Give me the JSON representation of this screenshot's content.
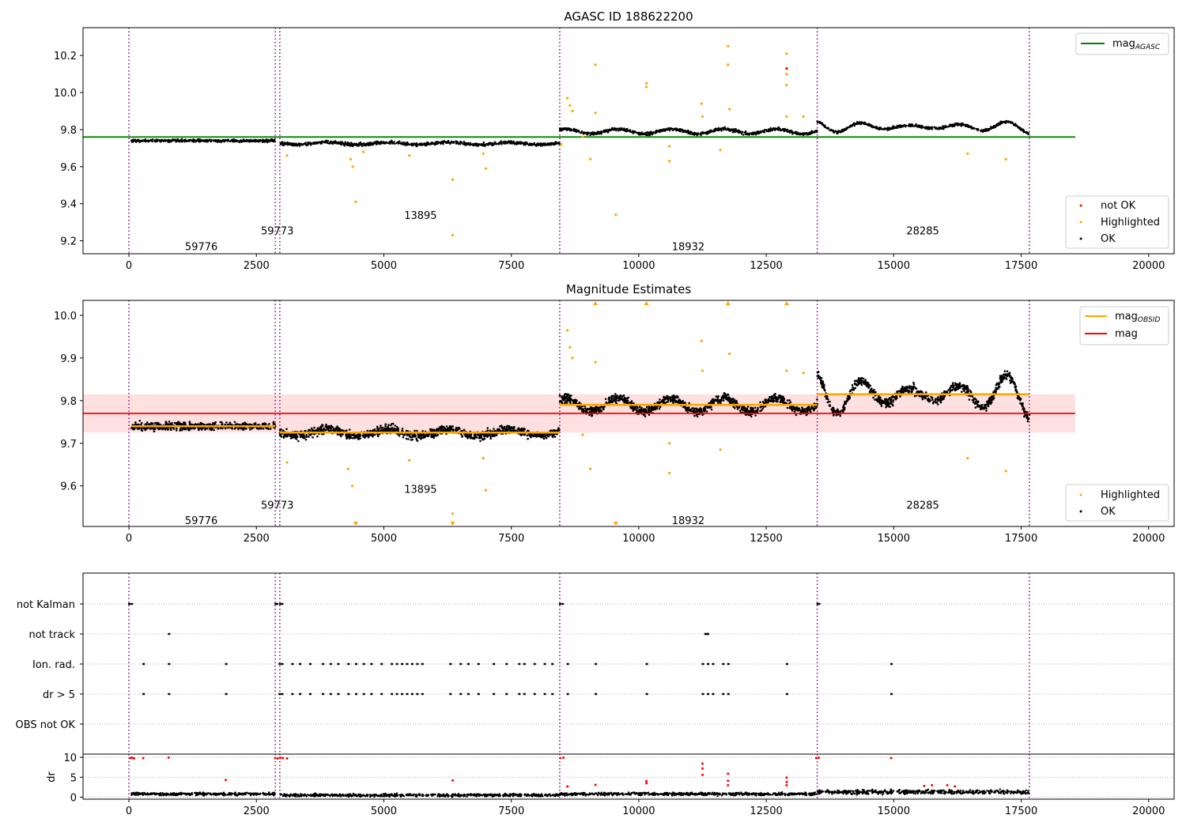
{
  "figure": {
    "obsids": [
      "59776",
      "59773",
      "13895",
      "18932",
      "28285"
    ],
    "obs_boundaries": [
      0,
      2870,
      2960,
      8450,
      13500,
      17660
    ],
    "x_ticks": [
      0,
      2500,
      5000,
      7500,
      10000,
      12500,
      15000,
      17500,
      20000
    ],
    "x_tick_labels": [
      "0",
      "2500",
      "5000",
      "7500",
      "10000",
      "12500",
      "15000",
      "17500",
      "20000"
    ],
    "xlim": [
      -900,
      20500
    ]
  },
  "chart_data": [
    {
      "type": "scatter",
      "title": "AGASC ID 188622200",
      "xlim": [
        -900,
        20500
      ],
      "ylim": [
        9.13,
        10.35
      ],
      "y_ticks": [
        9.2,
        9.4,
        9.6,
        9.8,
        10.0,
        10.2
      ],
      "y_tick_labels": [
        "9.2",
        "9.4",
        "9.6",
        "9.8",
        "10.0",
        "10.2"
      ],
      "legend_top": {
        "position": "top-right",
        "label_main": "mag",
        "label_sub": "AGASC",
        "color": "#008000"
      },
      "legend_bottom": {
        "position": "bottom-right",
        "entries": [
          {
            "label": "not OK",
            "color": "#ff0000"
          },
          {
            "label": "Highlighted",
            "color": "#ffa500"
          },
          {
            "label": "OK",
            "color": "#000000"
          }
        ]
      },
      "reference_line": {
        "value": 9.76,
        "x": [
          -900,
          18560
        ],
        "color": "#008000"
      },
      "obsid_labels": [
        {
          "text": "59776",
          "x": 1420,
          "y": 9.17
        },
        {
          "text": "59773",
          "x": 2910,
          "y": 9.255
        },
        {
          "text": "13895",
          "x": 5720,
          "y": 9.34
        },
        {
          "text": "18932",
          "x": 10970,
          "y": 9.17
        },
        {
          "text": "28285",
          "x": 15570,
          "y": 9.255
        }
      ],
      "segments": [
        {
          "x": [
            50,
            2870
          ],
          "mean": 9.74
        },
        {
          "x": [
            2960,
            8450
          ],
          "mean": 9.725
        },
        {
          "x": [
            8450,
            13500
          ],
          "mean": 9.79
        },
        {
          "x": [
            13500,
            17660
          ],
          "mean": 9.815
        }
      ],
      "highlighted_points": [
        {
          "x": 4350,
          "y": 9.64
        },
        {
          "x": 4390,
          "y": 9.6
        },
        {
          "x": 4450,
          "y": 9.41
        },
        {
          "x": 5500,
          "y": 9.66
        },
        {
          "x": 6350,
          "y": 9.53
        },
        {
          "x": 6350,
          "y": 9.23
        },
        {
          "x": 6950,
          "y": 9.67
        },
        {
          "x": 7000,
          "y": 9.59
        },
        {
          "x": 3100,
          "y": 9.66
        },
        {
          "x": 8600,
          "y": 9.97
        },
        {
          "x": 8650,
          "y": 9.93
        },
        {
          "x": 8700,
          "y": 9.9
        },
        {
          "x": 8900,
          "y": 9.76
        },
        {
          "x": 9050,
          "y": 9.64
        },
        {
          "x": 9150,
          "y": 10.15
        },
        {
          "x": 9150,
          "y": 9.89
        },
        {
          "x": 9550,
          "y": 9.34
        },
        {
          "x": 10150,
          "y": 10.05
        },
        {
          "x": 10150,
          "y": 10.03
        },
        {
          "x": 10600,
          "y": 9.71
        },
        {
          "x": 10600,
          "y": 9.63
        },
        {
          "x": 11230,
          "y": 9.94
        },
        {
          "x": 11250,
          "y": 9.87
        },
        {
          "x": 11600,
          "y": 9.69
        },
        {
          "x": 11750,
          "y": 10.25
        },
        {
          "x": 11750,
          "y": 10.15
        },
        {
          "x": 11780,
          "y": 9.91
        },
        {
          "x": 12900,
          "y": 10.21
        },
        {
          "x": 12900,
          "y": 10.1
        },
        {
          "x": 12900,
          "y": 10.04
        },
        {
          "x": 12900,
          "y": 9.87
        },
        {
          "x": 13230,
          "y": 9.87
        },
        {
          "x": 16450,
          "y": 9.67
        },
        {
          "x": 17200,
          "y": 9.64
        },
        {
          "x": 8480,
          "y": 9.72
        },
        {
          "x": 4600,
          "y": 9.68
        }
      ],
      "not_ok_points": [
        {
          "x": 12900,
          "y": 10.13
        }
      ]
    },
    {
      "type": "scatter",
      "title": "Magnitude Estimates",
      "xlim": [
        -900,
        20500
      ],
      "ylim": [
        9.505,
        10.035
      ],
      "y_ticks": [
        9.6,
        9.7,
        9.8,
        9.9,
        10.0
      ],
      "y_tick_labels": [
        "9.6",
        "9.7",
        "9.8",
        "9.9",
        "10.0"
      ],
      "legend_top": {
        "position": "top-right",
        "entries": [
          {
            "label_main": "mag",
            "label_sub": "OBSID",
            "color": "#ffa500"
          },
          {
            "label_main": "mag",
            "label_sub": "",
            "color": "#ff0000"
          }
        ]
      },
      "legend_bottom": {
        "position": "bottom-right",
        "entries": [
          {
            "label": "Highlighted",
            "color": "#ffa500"
          },
          {
            "label": "OK",
            "color": "#000000"
          }
        ]
      },
      "mag_line": {
        "value": 9.77,
        "x": [
          -900,
          18560
        ],
        "band": [
          9.725,
          9.815
        ],
        "color": "#ff0000"
      },
      "obsid_mag_lines": [
        {
          "x": [
            50,
            2870
          ],
          "value": 9.74
        },
        {
          "x": [
            2960,
            8450
          ],
          "value": 9.725
        },
        {
          "x": [
            8450,
            13500
          ],
          "value": 9.79
        },
        {
          "x": [
            13500,
            17660
          ],
          "value": 9.815
        }
      ],
      "obsid_labels": [
        {
          "text": "59776",
          "x": 1420,
          "y": 9.52
        },
        {
          "text": "59773",
          "x": 2910,
          "y": 9.556
        },
        {
          "text": "13895",
          "x": 5720,
          "y": 9.593
        },
        {
          "text": "18932",
          "x": 10970,
          "y": 9.52
        },
        {
          "text": "28285",
          "x": 15570,
          "y": 9.556
        }
      ],
      "highlighted_points": [
        {
          "x": 3100,
          "y": 9.655
        },
        {
          "x": 4300,
          "y": 9.64
        },
        {
          "x": 4380,
          "y": 9.6
        },
        {
          "x": 5500,
          "y": 9.66
        },
        {
          "x": 6350,
          "y": 9.535
        },
        {
          "x": 6950,
          "y": 9.665
        },
        {
          "x": 7000,
          "y": 9.59
        },
        {
          "x": 8600,
          "y": 9.965
        },
        {
          "x": 8650,
          "y": 9.925
        },
        {
          "x": 8700,
          "y": 9.9
        },
        {
          "x": 9050,
          "y": 9.64
        },
        {
          "x": 9150,
          "y": 9.89
        },
        {
          "x": 10600,
          "y": 9.63
        },
        {
          "x": 10600,
          "y": 9.7
        },
        {
          "x": 11230,
          "y": 9.94
        },
        {
          "x": 11250,
          "y": 9.87
        },
        {
          "x": 11600,
          "y": 9.685
        },
        {
          "x": 11780,
          "y": 9.91
        },
        {
          "x": 12900,
          "y": 9.87
        },
        {
          "x": 13230,
          "y": 9.865
        },
        {
          "x": 16450,
          "y": 9.665
        },
        {
          "x": 17200,
          "y": 9.635
        },
        {
          "x": 8900,
          "y": 9.72
        }
      ],
      "clipped_low": [
        4450,
        6350,
        9550
      ],
      "clipped_high": [
        9150,
        10150,
        11750,
        12900
      ]
    },
    {
      "type": "scatter",
      "title": "",
      "categories": [
        "not Kalman",
        "not track",
        "Ion. rad.",
        "dr > 5",
        "OBS not OK"
      ],
      "flag_points": {
        "not Kalman": [
          0,
          50,
          2870,
          2900,
          2960,
          3000,
          8450,
          8500,
          13500,
          13530
        ],
        "not track": [
          780,
          11300,
          11330,
          11350
        ],
        "Ion. rad.": [
          280,
          780,
          1900,
          2950,
          3000,
          3200,
          3350,
          3550,
          3800,
          3950,
          4100,
          4300,
          4450,
          4600,
          4750,
          4950,
          5150,
          5250,
          5350,
          5450,
          5550,
          5650,
          5750,
          6300,
          6500,
          6650,
          6850,
          7150,
          7400,
          7650,
          7750,
          7950,
          8150,
          8300,
          8600,
          9150,
          10150,
          11250,
          11350,
          11450,
          11650,
          11750,
          12900,
          14950
        ],
        "dr > 5": [
          280,
          780,
          1900,
          2950,
          3000,
          3200,
          3350,
          3550,
          3800,
          3950,
          4100,
          4300,
          4450,
          4600,
          4750,
          4950,
          5150,
          5250,
          5350,
          5450,
          5550,
          5650,
          5750,
          6300,
          6500,
          6650,
          6850,
          7150,
          7400,
          7650,
          7750,
          7950,
          8150,
          8300,
          8600,
          9150,
          10150,
          11250,
          11350,
          11450,
          11650,
          11750,
          12900,
          14950
        ],
        "OBS not OK": []
      }
    },
    {
      "type": "scatter",
      "title": "",
      "ylabel": "dr",
      "ylim": [
        -0.5,
        10.8
      ],
      "y_ticks": [
        0,
        5,
        10
      ],
      "y_tick_labels": [
        "0",
        "5",
        "10"
      ],
      "red_points": [
        {
          "x": 30,
          "y": 9.8
        },
        {
          "x": 60,
          "y": 9.9
        },
        {
          "x": 100,
          "y": 9.7
        },
        {
          "x": 280,
          "y": 9.8
        },
        {
          "x": 780,
          "y": 9.9
        },
        {
          "x": 1900,
          "y": 4.3
        },
        {
          "x": 2870,
          "y": 9.8
        },
        {
          "x": 2920,
          "y": 9.7
        },
        {
          "x": 2970,
          "y": 9.9
        },
        {
          "x": 3020,
          "y": 9.8
        },
        {
          "x": 3100,
          "y": 9.7
        },
        {
          "x": 6350,
          "y": 4.2
        },
        {
          "x": 8460,
          "y": 9.8
        },
        {
          "x": 8520,
          "y": 9.9
        },
        {
          "x": 8600,
          "y": 2.7
        },
        {
          "x": 9150,
          "y": 3.1
        },
        {
          "x": 10150,
          "y": 4.0
        },
        {
          "x": 10150,
          "y": 3.5
        },
        {
          "x": 11250,
          "y": 8.4
        },
        {
          "x": 11250,
          "y": 7.2
        },
        {
          "x": 11250,
          "y": 5.6
        },
        {
          "x": 11750,
          "y": 5.9
        },
        {
          "x": 11750,
          "y": 4.1
        },
        {
          "x": 11750,
          "y": 3.0
        },
        {
          "x": 12900,
          "y": 4.9
        },
        {
          "x": 12900,
          "y": 3.8
        },
        {
          "x": 12900,
          "y": 3.0
        },
        {
          "x": 13480,
          "y": 9.8
        },
        {
          "x": 13530,
          "y": 9.9
        },
        {
          "x": 15600,
          "y": 2.8
        },
        {
          "x": 15750,
          "y": 3.0
        },
        {
          "x": 16050,
          "y": 3.0
        },
        {
          "x": 16200,
          "y": 2.7
        },
        {
          "x": 14950,
          "y": 9.8
        }
      ],
      "ok_level_segments": [
        {
          "x": [
            50,
            2870
          ],
          "mean": 0.8
        },
        {
          "x": [
            2960,
            8450
          ],
          "mean": 0.5
        },
        {
          "x": [
            8450,
            13500
          ],
          "mean": 0.8
        },
        {
          "x": [
            13500,
            17660
          ],
          "mean": 1.3
        }
      ]
    }
  ]
}
